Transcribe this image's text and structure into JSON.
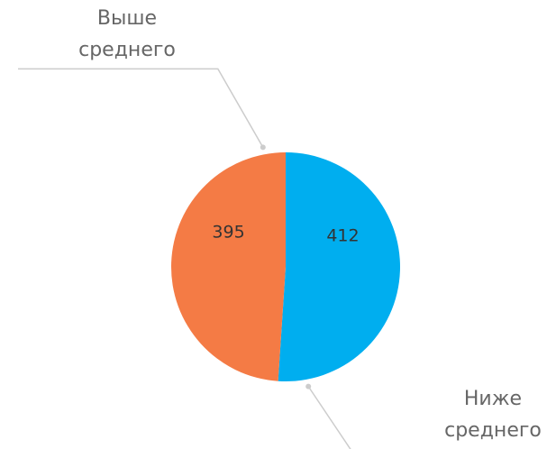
{
  "chart_data": {
    "type": "pie",
    "categories": [
      "Ниже среднего",
      "Выше среднего"
    ],
    "values": [
      412,
      395
    ],
    "colors": [
      "#00aeef",
      "#f47b45"
    ]
  }
}
